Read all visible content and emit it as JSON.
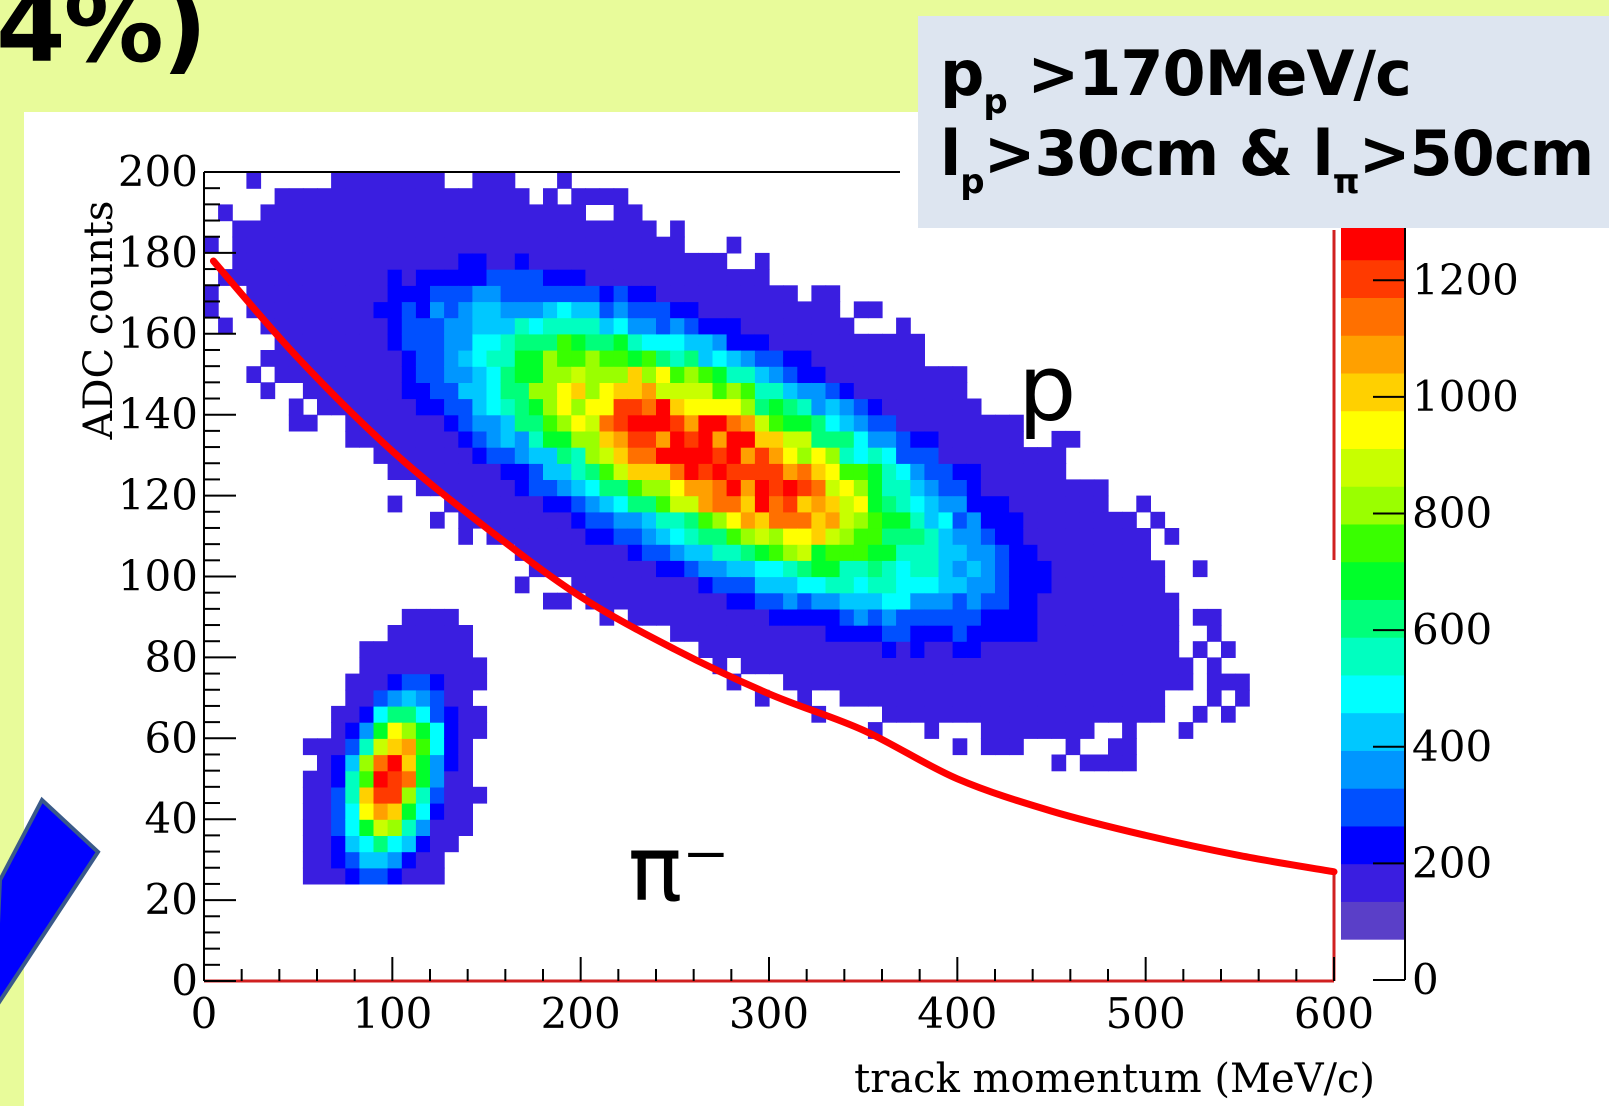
{
  "slide": {
    "title_fragment": "4%)"
  },
  "cut_box": {
    "line1_main": "p",
    "line1_sub": "p",
    "line1_rest": " >170MeV/c",
    "line2_a": "l",
    "line2_a_sub": "p",
    "line2_b": ">30cm & l",
    "line2_b_sub": "π",
    "line2_c": ">50cm"
  },
  "chart_data": {
    "type": "heatmap",
    "xlabel": "track momentum (MeV/c)",
    "ylabel": "ADC counts",
    "xlim": [
      0,
      600
    ],
    "ylim": [
      0,
      200
    ],
    "x_ticks": [
      0,
      100,
      200,
      300,
      400,
      500,
      600
    ],
    "y_ticks": [
      0,
      20,
      40,
      60,
      80,
      100,
      120,
      140,
      160,
      180,
      200
    ],
    "colorbar": {
      "ticks": [
        0,
        200,
        400,
        600,
        800,
        1000,
        1200
      ],
      "range": [
        0,
        1300
      ],
      "palette": [
        "#5a3fc8",
        "#3a1ee0",
        "#0000ff",
        "#0050ff",
        "#0096ff",
        "#00c8ff",
        "#00ffff",
        "#00ffc0",
        "#00ff7a",
        "#00ff2a",
        "#39ff00",
        "#9aff00",
        "#c8ff00",
        "#ffff00",
        "#ffd000",
        "#ffa000",
        "#ff7000",
        "#ff3a00",
        "#ff0000"
      ]
    },
    "clusters": [
      {
        "name": "π⁻",
        "center_x": 100,
        "center_y": 50,
        "peak": 1300
      },
      {
        "name": "p",
        "center_x": 270,
        "center_y": 130,
        "peak": 1300
      }
    ],
    "cut_curve": {
      "color": "#ff0000",
      "points": [
        [
          5,
          178
        ],
        [
          50,
          154
        ],
        [
          100,
          131
        ],
        [
          150,
          112
        ],
        [
          200,
          95
        ],
        [
          250,
          82
        ],
        [
          300,
          71
        ],
        [
          350,
          62
        ],
        [
          400,
          50
        ],
        [
          450,
          42
        ],
        [
          500,
          36
        ],
        [
          550,
          31
        ],
        [
          600,
          27
        ]
      ]
    },
    "annotations": {
      "proton_label": "p",
      "pion_label": "π⁻"
    }
  }
}
